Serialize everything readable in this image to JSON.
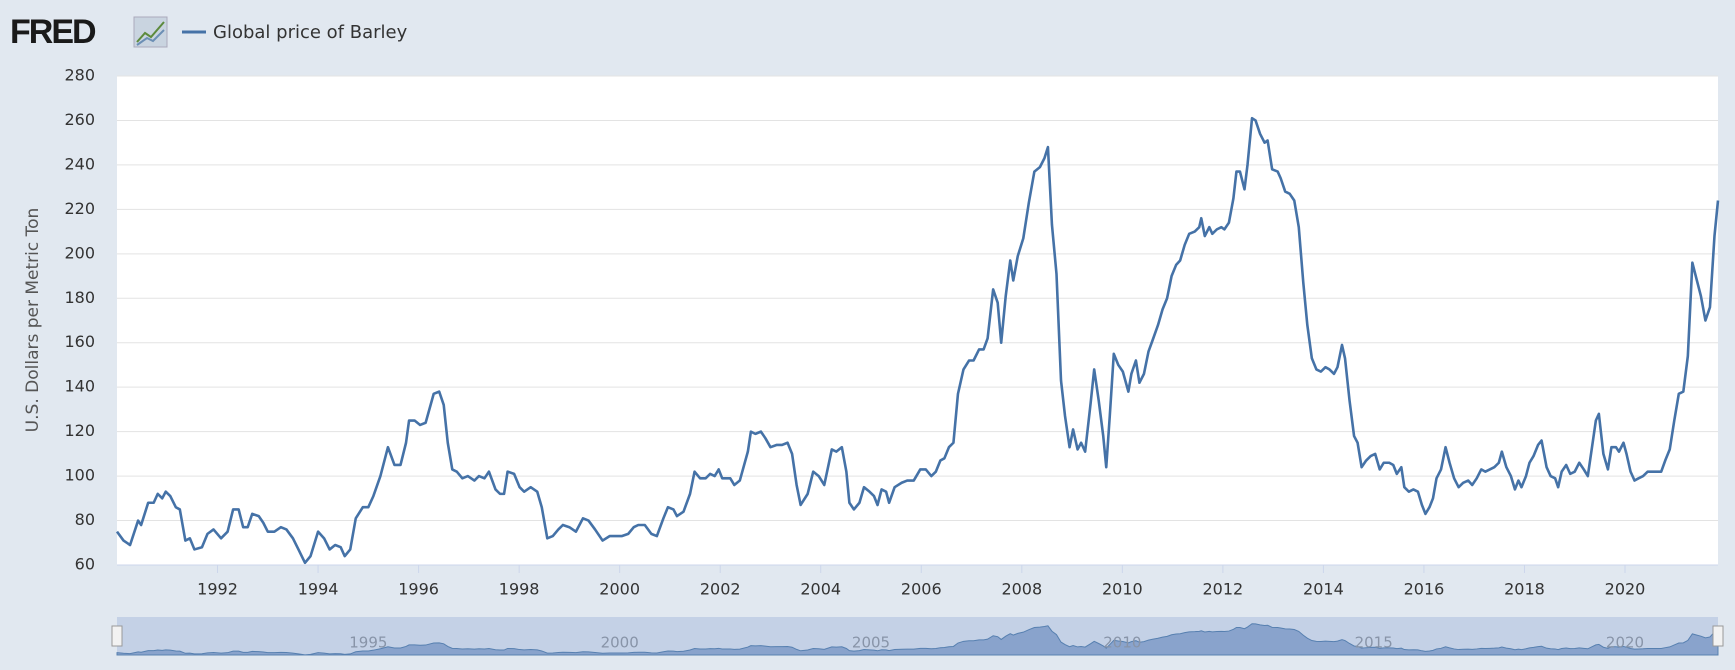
{
  "header": {
    "logo": "FRED"
  },
  "chart_data": {
    "type": "line",
    "y_label": "U.S. Dollars per Metric Ton",
    "x": [
      1990.0,
      1990.13,
      1990.26,
      1990.42,
      1990.48,
      1990.62,
      1990.73,
      1990.81,
      1990.9,
      1990.97,
      1991.06,
      1991.17,
      1991.25,
      1991.36,
      1991.45,
      1991.54,
      1991.69,
      1991.8,
      1991.92,
      1992.07,
      1992.2,
      1992.31,
      1992.42,
      1992.51,
      1992.6,
      1992.69,
      1992.82,
      1992.91,
      1993.0,
      1993.13,
      1993.26,
      1993.37,
      1993.5,
      1993.61,
      1993.74,
      1993.85,
      1994.0,
      1994.12,
      1994.23,
      1994.34,
      1994.45,
      1994.53,
      1994.64,
      1994.75,
      1994.89,
      1995.0,
      1995.1,
      1995.24,
      1995.39,
      1995.52,
      1995.64,
      1995.75,
      1995.81,
      1995.92,
      1996.03,
      1996.14,
      1996.3,
      1996.41,
      1996.5,
      1996.58,
      1996.67,
      1996.76,
      1996.87,
      1996.98,
      1997.11,
      1997.2,
      1997.31,
      1997.4,
      1997.53,
      1997.62,
      1997.7,
      1997.77,
      1997.9,
      1998.01,
      1998.1,
      1998.23,
      1998.36,
      1998.45,
      1998.56,
      1998.67,
      1998.78,
      1998.87,
      1999.0,
      1999.13,
      1999.27,
      1999.38,
      1999.51,
      1999.66,
      1999.8,
      1999.93,
      2000.04,
      2000.17,
      2000.28,
      2000.37,
      2000.5,
      2000.63,
      2000.74,
      2000.87,
      2000.96,
      2001.07,
      2001.14,
      2001.27,
      2001.4,
      2001.49,
      2001.6,
      2001.71,
      2001.8,
      2001.89,
      2001.97,
      2002.04,
      2002.2,
      2002.28,
      2002.39,
      2002.55,
      2002.61,
      2002.7,
      2002.81,
      2002.9,
      2003.0,
      2003.12,
      2003.23,
      2003.34,
      2003.43,
      2003.52,
      2003.6,
      2003.74,
      2003.85,
      2003.96,
      2004.07,
      2004.22,
      2004.31,
      2004.42,
      2004.51,
      2004.57,
      2004.66,
      2004.77,
      2004.86,
      2004.97,
      2005.06,
      2005.13,
      2005.21,
      2005.3,
      2005.36,
      2005.47,
      2005.61,
      2005.72,
      2005.85,
      2005.98,
      2006.09,
      2006.2,
      2006.29,
      2006.38,
      2006.46,
      2006.55,
      2006.64,
      2006.73,
      2006.84,
      2006.95,
      2007.04,
      2007.15,
      2007.24,
      2007.32,
      2007.43,
      2007.52,
      2007.59,
      2007.68,
      2007.77,
      2007.83,
      2007.92,
      2008.03,
      2008.14,
      2008.25,
      2008.36,
      2008.45,
      2008.52,
      2008.6,
      2008.69,
      2008.78,
      2008.86,
      2008.95,
      2009.02,
      2009.11,
      2009.18,
      2009.26,
      2009.37,
      2009.44,
      2009.53,
      2009.62,
      2009.68,
      2009.75,
      2009.83,
      2009.92,
      2010.01,
      2010.12,
      2010.18,
      2010.27,
      2010.34,
      2010.43,
      2010.52,
      2010.6,
      2010.71,
      2010.8,
      2010.89,
      2010.98,
      2011.07,
      2011.15,
      2011.24,
      2011.33,
      2011.44,
      2011.53,
      2011.57,
      2011.64,
      2011.73,
      2011.79,
      2011.88,
      2011.97,
      2012.03,
      2012.12,
      2012.21,
      2012.27,
      2012.34,
      2012.43,
      2012.49,
      2012.58,
      2012.65,
      2012.74,
      2012.83,
      2012.89,
      2012.98,
      2013.09,
      2013.15,
      2013.24,
      2013.33,
      2013.42,
      2013.51,
      2013.6,
      2013.68,
      2013.77,
      2013.86,
      2013.95,
      2014.04,
      2014.12,
      2014.21,
      2014.28,
      2014.37,
      2014.43,
      2014.52,
      2014.61,
      2014.68,
      2014.76,
      2014.85,
      2014.94,
      2015.03,
      2015.12,
      2015.2,
      2015.31,
      2015.39,
      2015.46,
      2015.55,
      2015.61,
      2015.7,
      2015.79,
      2015.88,
      2015.96,
      2016.03,
      2016.11,
      2016.18,
      2016.25,
      2016.34,
      2016.43,
      2016.51,
      2016.6,
      2016.69,
      2016.78,
      2016.88,
      2016.96,
      2017.05,
      2017.14,
      2017.22,
      2017.31,
      2017.4,
      2017.49,
      2017.55,
      2017.64,
      2017.73,
      2017.81,
      2017.88,
      2017.94,
      2018.03,
      2018.1,
      2018.18,
      2018.27,
      2018.34,
      2018.44,
      2018.52,
      2018.61,
      2018.67,
      2018.74,
      2018.83,
      2018.91,
      2019.0,
      2019.09,
      2019.18,
      2019.26,
      2019.35,
      2019.42,
      2019.48,
      2019.57,
      2019.66,
      2019.73,
      2019.82,
      2019.88,
      2019.97,
      2020.03,
      2020.11,
      2020.19,
      2020.27,
      2020.36,
      2020.45,
      2020.54,
      2020.63,
      2020.72,
      2020.8,
      2020.89,
      2020.98,
      2021.07,
      2021.16,
      2021.25,
      2021.34,
      2021.43,
      2021.51,
      2021.6,
      2021.69,
      2021.78,
      2021.85
    ],
    "series": [
      {
        "name": "Global price of Barley",
        "color": "#4572a7",
        "values": [
          75,
          71,
          69,
          80,
          78,
          88,
          88,
          92,
          90,
          93,
          91,
          86,
          85,
          71,
          72,
          67,
          68,
          74,
          76,
          72,
          75,
          85,
          85,
          77,
          77,
          83,
          82,
          79,
          75,
          75,
          77,
          76,
          72,
          67,
          61,
          64,
          75,
          72,
          67,
          69,
          68,
          64,
          67,
          81,
          86,
          86,
          91,
          100,
          113,
          105,
          105,
          115,
          125,
          125,
          123,
          124,
          137,
          138,
          132,
          115,
          103,
          102,
          99,
          100,
          98,
          100,
          99,
          102,
          94,
          92,
          92,
          102,
          101,
          95,
          93,
          95,
          93,
          86,
          72,
          73,
          76,
          78,
          77,
          75,
          81,
          80,
          76,
          71,
          73,
          73,
          73,
          74,
          77,
          78,
          78,
          74,
          73,
          81,
          86,
          85,
          82,
          84,
          92,
          102,
          99,
          99,
          101,
          100,
          103,
          99,
          99,
          96,
          98,
          111,
          120,
          119,
          120,
          117,
          113,
          114,
          114,
          115,
          110,
          96,
          87,
          92,
          102,
          100,
          96,
          112,
          111,
          113,
          102,
          88,
          85,
          88,
          95,
          93,
          91,
          87,
          94,
          93,
          88,
          95,
          97,
          98,
          98,
          103,
          103,
          100,
          102,
          107,
          108,
          113,
          115,
          137,
          148,
          152,
          152,
          157,
          157,
          162,
          184,
          178,
          160,
          181,
          197,
          188,
          199,
          207,
          223,
          237,
          239,
          243,
          248,
          213,
          191,
          143,
          127,
          113,
          121,
          112,
          115,
          111,
          133,
          148,
          134,
          118,
          104,
          127,
          155,
          150,
          147,
          138,
          146,
          152,
          142,
          146,
          156,
          161,
          168,
          175,
          180,
          190,
          195,
          197,
          204,
          209,
          210,
          212,
          216,
          208,
          212,
          209,
          211,
          212,
          211,
          214,
          225,
          237,
          237,
          229,
          240,
          261,
          260,
          254,
          250,
          251,
          238,
          237,
          234,
          228,
          227,
          224,
          212,
          187,
          168,
          153,
          148,
          147,
          149,
          148,
          146,
          149,
          159,
          153,
          134,
          118,
          115,
          104,
          107,
          109,
          110,
          103,
          106,
          106,
          105,
          101,
          104,
          95,
          93,
          94,
          93,
          87,
          83,
          86,
          90,
          99,
          103,
          113,
          106,
          99,
          95,
          97,
          98,
          96,
          99,
          103,
          102,
          103,
          104,
          106,
          111,
          104,
          100,
          94,
          98,
          95,
          100,
          106,
          109,
          114,
          116,
          104,
          100,
          99,
          95,
          102,
          105,
          101,
          102,
          106,
          103,
          100,
          114,
          125,
          128,
          110,
          103,
          113,
          113,
          111,
          115,
          110,
          102,
          98,
          99,
          100,
          102,
          102,
          102,
          102,
          107,
          112,
          125,
          137,
          138,
          154,
          196,
          188,
          181,
          170,
          176,
          208,
          224
        ]
      }
    ],
    "xlim": [
      1990,
      2021.85
    ],
    "xticks": [
      1992,
      1994,
      1996,
      1998,
      2000,
      2002,
      2004,
      2006,
      2008,
      2010,
      2012,
      2014,
      2016,
      2018,
      2020
    ],
    "ylim": [
      60,
      280
    ],
    "yticks": [
      60,
      80,
      100,
      120,
      140,
      160,
      180,
      200,
      220,
      240,
      260,
      280
    ],
    "grid": true,
    "navigator_ticks": [
      1995,
      2000,
      2005,
      2010,
      2015,
      2020
    ]
  }
}
